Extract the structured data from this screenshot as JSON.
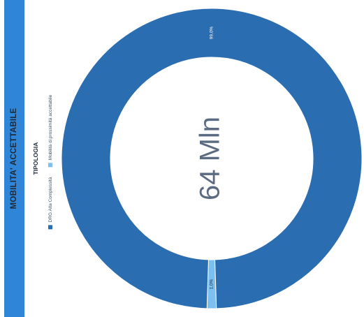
{
  "panel": {
    "title": "MOBILITA' ACCETTABILE"
  },
  "legend": {
    "title": "TIPOLOGIA",
    "items": [
      {
        "label": "DRG Alta Complessità",
        "color": "#2a6db1"
      },
      {
        "label": "Mobilità di prossimità accettabile",
        "color": "#7cc0f2"
      }
    ]
  },
  "chart_data": {
    "type": "pie",
    "donut": true,
    "center_label": "64 Mln",
    "slices": [
      {
        "label": "DRG Alta Complessità",
        "value": 99.0,
        "value_label": "99,0%",
        "color": "#2a6db1"
      },
      {
        "label": "Mobilità di prossimità accettabile",
        "value": 1.0,
        "value_label": "1,0%",
        "color": "#7cc0f2"
      }
    ]
  }
}
